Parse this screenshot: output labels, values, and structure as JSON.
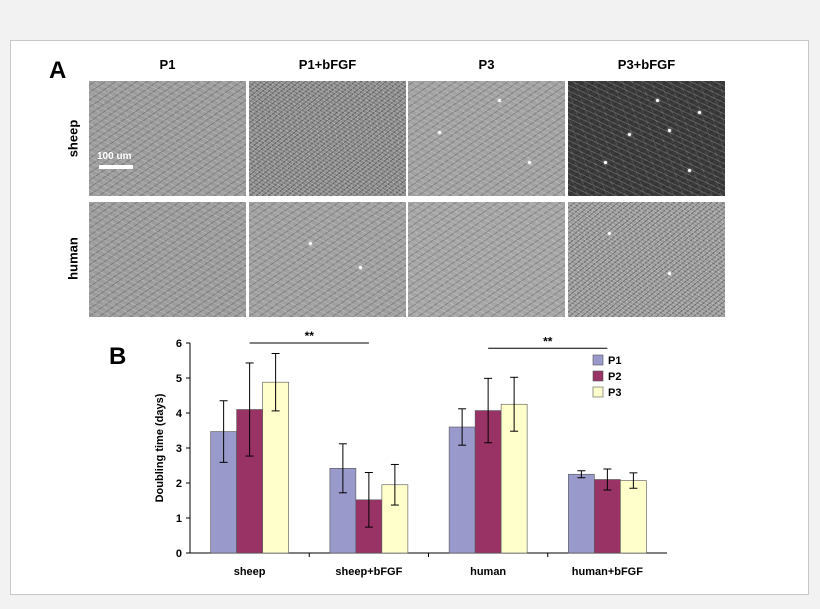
{
  "panel_a": {
    "letter": "A",
    "columns": [
      "P1",
      "P1+bFGF",
      "P3",
      "P3+bFGF"
    ],
    "rows": [
      "sheep",
      "human"
    ],
    "scale_bar_label": "100 um"
  },
  "panel_b": {
    "letter": "B",
    "significance": [
      "**",
      "**"
    ]
  },
  "chart_data": {
    "type": "bar",
    "categories": [
      "sheep",
      "sheep+bFGF",
      "human",
      "human+bFGF"
    ],
    "ylabel": "Doubling time (days)",
    "xlabel": "",
    "ylim": [
      0,
      6
    ],
    "yticks": [
      "0",
      "1",
      "2",
      "3",
      "4",
      "5",
      "6"
    ],
    "grid": false,
    "legend_position": "top-right",
    "series": [
      {
        "name": "P1",
        "color": "#9999cc",
        "values": [
          3.47,
          2.42,
          3.6,
          2.25
        ],
        "errors": [
          0.88,
          0.7,
          0.52,
          0.1
        ]
      },
      {
        "name": "P2",
        "color": "#993366",
        "values": [
          4.1,
          1.52,
          4.07,
          2.1
        ],
        "errors": [
          1.33,
          0.78,
          0.92,
          0.3
        ]
      },
      {
        "name": "P3",
        "color": "#ffffcc",
        "values": [
          4.88,
          1.95,
          4.25,
          2.07
        ],
        "errors": [
          0.82,
          0.58,
          0.77,
          0.22
        ]
      }
    ]
  }
}
